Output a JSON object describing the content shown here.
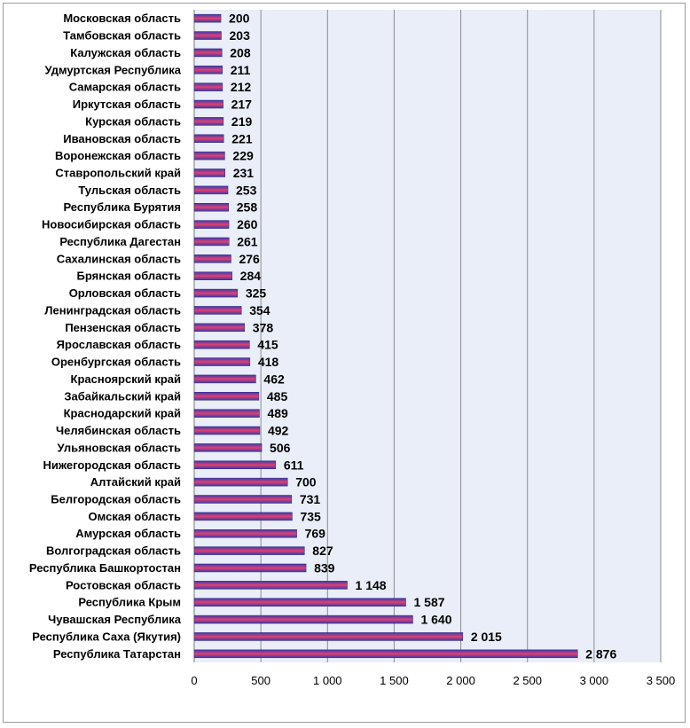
{
  "chart_data": {
    "type": "bar",
    "orientation": "horizontal",
    "categories": [
      "Московская область",
      "Тамбовская область",
      "Калужская область",
      "Удмуртская Республика",
      "Самарская область",
      "Иркутская область",
      "Курская область",
      "Ивановская область",
      "Воронежская область",
      "Ставропольский край",
      "Тульская область",
      "Республика Бурятия",
      "Новосибирская область",
      "Республика Дагестан",
      "Сахалинская область",
      "Брянская область",
      "Орловская область",
      "Ленинградская область",
      "Пензенская область",
      "Ярославская область",
      "Оренбургская область",
      "Красноярский край",
      "Забайкальский край",
      "Краснодарский край",
      "Челябинская область",
      "Ульяновская область",
      "Нижегородская область",
      "Алтайский край",
      "Белгородская область",
      "Омская область",
      "Амурская область",
      "Волгоградская область",
      "Республика Башкортостан",
      "Ростовская область",
      "Республика Крым",
      "Чувашская Республика",
      "Республика Саха (Якутия)",
      "Республика Татарстан"
    ],
    "values": [
      200,
      203,
      208,
      211,
      212,
      217,
      219,
      221,
      229,
      231,
      253,
      258,
      260,
      261,
      276,
      284,
      325,
      354,
      378,
      415,
      418,
      462,
      485,
      489,
      492,
      506,
      611,
      700,
      731,
      735,
      769,
      827,
      839,
      1148,
      1587,
      1640,
      2015,
      2876
    ],
    "value_labels": [
      "200",
      "203",
      "208",
      "211",
      "212",
      "217",
      "219",
      "221",
      "229",
      "231",
      "253",
      "258",
      "260",
      "261",
      "276",
      "284",
      "325",
      "354",
      "378",
      "415",
      "418",
      "462",
      "485",
      "489",
      "492",
      "506",
      "611",
      "700",
      "731",
      "735",
      "769",
      "827",
      "839",
      "1 148",
      "1 587",
      "1 640",
      "2 015",
      "2 876"
    ],
    "title": "",
    "xlabel": "",
    "ylabel": "",
    "xlim": [
      0,
      3500
    ],
    "x_ticks": [
      0,
      500,
      1000,
      1500,
      2000,
      2500,
      3000,
      3500
    ],
    "x_tick_labels": [
      "0",
      "500",
      "1 000",
      "1 500",
      "2 000",
      "2 500",
      "3 000",
      "3 500"
    ],
    "grid": "vertical",
    "legend": "none",
    "colors": {
      "plot_background": "#e9eef8",
      "grid": "#8c8c8c",
      "bar_top": "#3a3ab0",
      "bar_middle": "#e0406e",
      "bar_bottom": "#3a3ab0",
      "bar_outline": "#2a2a80"
    }
  }
}
